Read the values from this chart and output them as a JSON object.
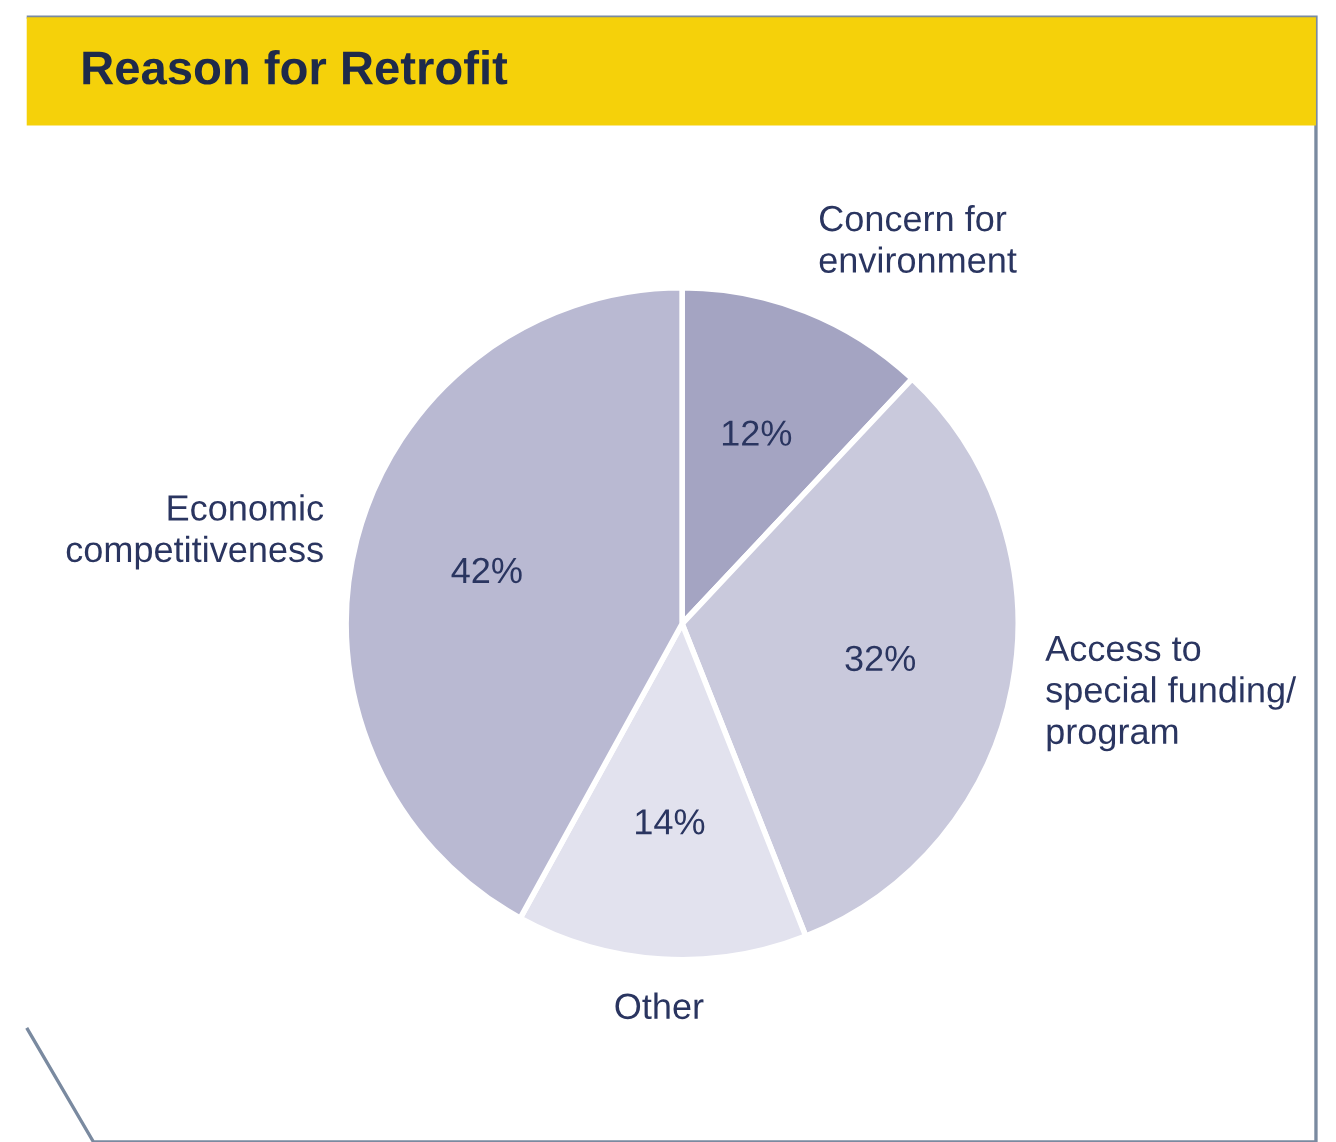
{
  "chart_data": {
    "type": "pie",
    "title": "Reason for Retrofit",
    "categories": [
      "Concern for\nenvironment",
      "Access to\nspecial funding/\nprogram",
      "Other",
      "Economic\ncompetitiveness"
    ],
    "values": [
      12,
      32,
      14,
      42
    ],
    "colors": [
      "#a4a4c2",
      "#c9c9dc",
      "#e2e2ee",
      "#b9b9d2"
    ],
    "value_labels": [
      "12%",
      "32%",
      "14%",
      "42%"
    ]
  }
}
